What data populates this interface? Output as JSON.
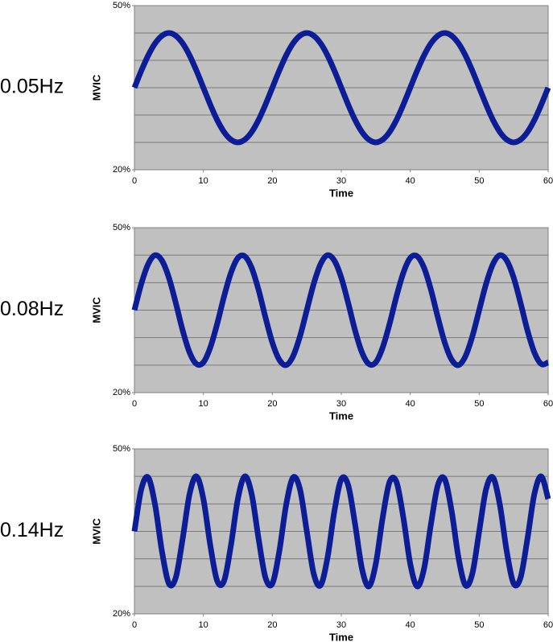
{
  "chart_data": [
    {
      "type": "line",
      "annotation": "0.05Hz",
      "ylabel": "MVIC",
      "xlabel": "Time",
      "color": "#0d1d96",
      "x": [
        0,
        1,
        2,
        3,
        4,
        5,
        6,
        7,
        8,
        9,
        10,
        11,
        12,
        13,
        14,
        15,
        16,
        17,
        18,
        19,
        20,
        21,
        22,
        23,
        24,
        25,
        26,
        27,
        28,
        29,
        30,
        31,
        32,
        33,
        34,
        35,
        36,
        37,
        38,
        39,
        40,
        41,
        42,
        43,
        44,
        45,
        46,
        47,
        48,
        49,
        50,
        51,
        52,
        53,
        54,
        55,
        56,
        57,
        58,
        59,
        60
      ],
      "values": [
        35,
        38.1,
        40.9,
        43.1,
        44.5,
        45,
        44.5,
        43.1,
        40.9,
        38.1,
        35,
        31.9,
        29.1,
        26.9,
        25.5,
        25,
        25.5,
        26.9,
        29.1,
        31.9,
        35,
        38.1,
        40.9,
        43.1,
        44.5,
        45,
        44.5,
        43.1,
        40.9,
        38.1,
        35,
        31.9,
        29.1,
        26.9,
        25.5,
        25,
        25.5,
        26.9,
        29.1,
        31.9,
        35,
        38.1,
        40.9,
        43.1,
        44.5,
        45,
        44.5,
        43.1,
        40.9,
        38.1,
        35,
        31.9,
        29.1,
        26.9,
        25.5,
        25,
        25.5,
        26.9,
        29.1,
        31.9,
        35
      ],
      "xlim": [
        0,
        60
      ],
      "xticks": [
        0,
        10,
        20,
        30,
        40,
        50,
        60
      ],
      "ylim": [
        20,
        50
      ],
      "yticks": [
        {
          "value": 20,
          "label": "20%"
        },
        {
          "value": 50,
          "label": "50%"
        }
      ],
      "grid_lines": [
        25,
        30,
        35,
        40,
        45
      ]
    },
    {
      "type": "line",
      "annotation": "0.08Hz",
      "ylabel": "MVIC",
      "xlabel": "Time",
      "color": "#0d1d96",
      "x": [
        0,
        1,
        2,
        3,
        4,
        5,
        6,
        7,
        8,
        9,
        10,
        11,
        12,
        13,
        14,
        15,
        16,
        17,
        18,
        19,
        20,
        21,
        22,
        23,
        24,
        25,
        26,
        27,
        28,
        29,
        30,
        31,
        32,
        33,
        34,
        35,
        36,
        37,
        38,
        39,
        40,
        41,
        42,
        43,
        44,
        45,
        46,
        47,
        48,
        49,
        50,
        51,
        52,
        53,
        54,
        55,
        56,
        57,
        58,
        59,
        60
      ],
      "values": [
        35,
        39.8,
        43.4,
        45,
        44,
        40.9,
        36.3,
        31.3,
        27.3,
        25.2,
        25.5,
        28.2,
        32.5,
        37.5,
        41.8,
        44.5,
        44.8,
        42.7,
        38.7,
        33.7,
        29.1,
        26,
        25,
        26.6,
        30.2,
        35,
        39.8,
        43.4,
        45,
        44,
        40.9,
        36.3,
        31.3,
        27.3,
        25.2,
        25.5,
        28.2,
        32.5,
        37.5,
        41.8,
        44.5,
        44.8,
        42.7,
        38.7,
        33.7,
        29.1,
        26,
        25,
        26.6,
        30.2,
        35,
        39.8,
        43.4,
        45,
        44,
        40.9,
        36.3,
        31.3,
        27.3,
        25.2,
        25.5
      ],
      "xlim": [
        0,
        60
      ],
      "xticks": [
        0,
        10,
        20,
        30,
        40,
        50,
        60
      ],
      "ylim": [
        20,
        50
      ],
      "yticks": [
        {
          "value": 20,
          "label": "20%"
        },
        {
          "value": 50,
          "label": "50%"
        }
      ],
      "grid_lines": [
        25,
        30,
        35,
        40,
        45
      ]
    },
    {
      "type": "line",
      "annotation": "0.14Hz",
      "ylabel": "MVIC",
      "xlabel": "Time",
      "color": "#0d1d96",
      "x": [
        0,
        1,
        2,
        3,
        4,
        5,
        6,
        7,
        8,
        9,
        10,
        11,
        12,
        13,
        14,
        15,
        16,
        17,
        18,
        19,
        20,
        21,
        22,
        23,
        24,
        25,
        26,
        27,
        28,
        29,
        30,
        31,
        32,
        33,
        34,
        35,
        36,
        37,
        38,
        39,
        40,
        41,
        42,
        43,
        44,
        45,
        46,
        47,
        48,
        49,
        50,
        51,
        52,
        53,
        54,
        55,
        56,
        57,
        58,
        59,
        60
      ],
      "values": [
        35,
        42.7,
        44.8,
        39.8,
        31.3,
        25.5,
        26.6,
        33.7,
        41.8,
        45,
        40.9,
        32.5,
        26,
        26,
        32.5,
        40.9,
        45,
        41.8,
        33.7,
        26.6,
        25.5,
        31.3,
        39.8,
        44.8,
        42.7,
        35,
        27.3,
        25.2,
        30.2,
        38.7,
        44.5,
        43.4,
        36.3,
        28.2,
        25,
        29.1,
        37.5,
        44,
        44,
        37.5,
        29.1,
        25,
        28.2,
        36.3,
        43.4,
        44.5,
        38.7,
        30.2,
        25.2,
        27.3,
        35,
        42.7,
        44.8,
        39.8,
        31.3,
        25.5,
        26.6,
        33.7,
        41.8,
        45,
        40.9
      ],
      "xlim": [
        0,
        60
      ],
      "xticks": [
        0,
        10,
        20,
        30,
        40,
        50,
        60
      ],
      "ylim": [
        20,
        50
      ],
      "yticks": [
        {
          "value": 20,
          "label": "20%"
        },
        {
          "value": 50,
          "label": "50%"
        }
      ],
      "grid_lines": [
        25,
        30,
        35,
        40,
        45
      ]
    }
  ]
}
